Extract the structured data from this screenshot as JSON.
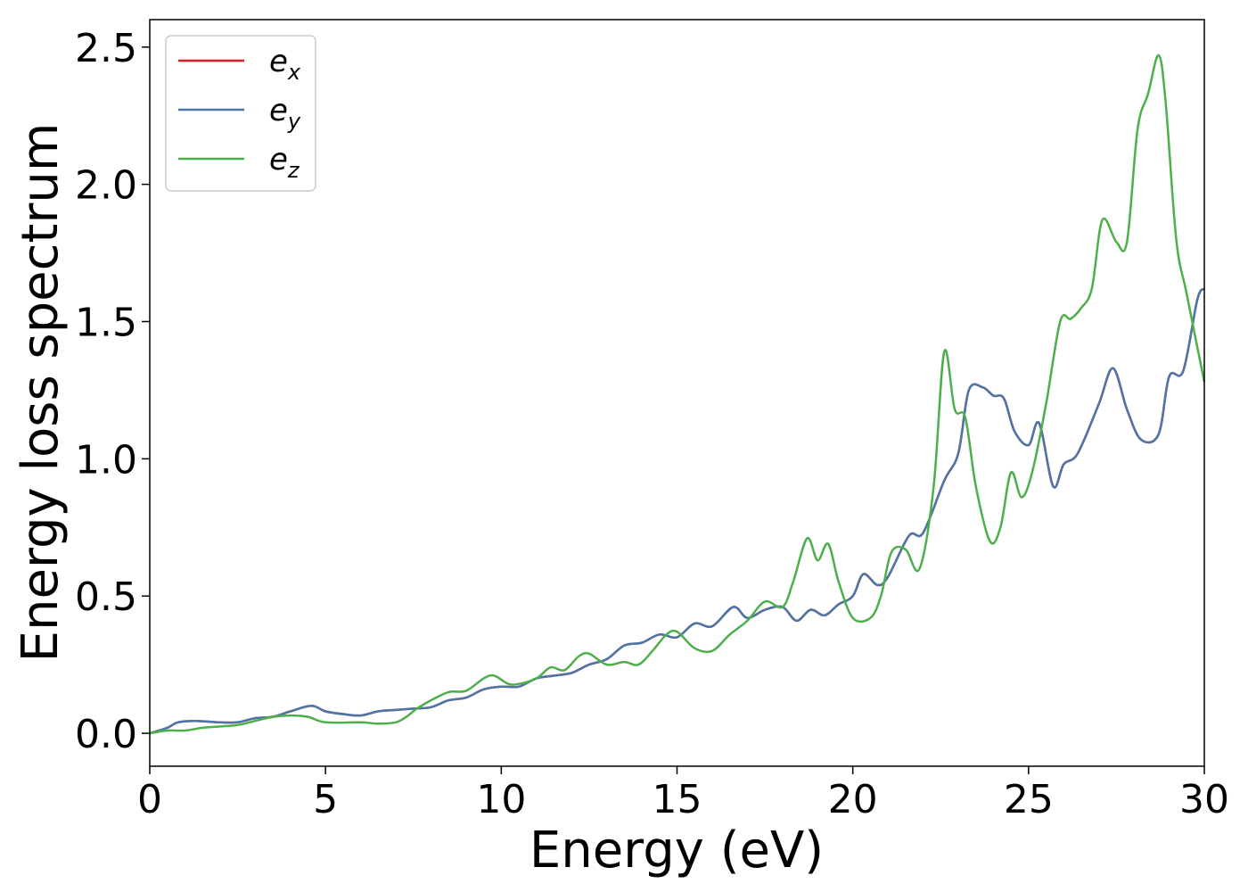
{
  "chart_data": {
    "type": "line",
    "title": "",
    "xlabel": "Energy (eV)",
    "ylabel": "Energy loss spectrum",
    "xlim": [
      0,
      30
    ],
    "ylim": [
      -0.12,
      2.6
    ],
    "xticks": [
      0,
      5,
      10,
      15,
      20,
      25,
      30
    ],
    "xtick_labels": [
      "0",
      "5",
      "10",
      "15",
      "20",
      "25",
      "30"
    ],
    "yticks": [
      0.0,
      0.5,
      1.0,
      1.5,
      2.0,
      2.5
    ],
    "ytick_labels": [
      "0.0",
      "0.5",
      "1.0",
      "1.5",
      "2.0",
      "2.5"
    ],
    "grid": false,
    "legend_position": "top-left",
    "series": [
      {
        "name": "e_x",
        "label_base": "e",
        "label_sub": "x",
        "color": "#e41a1c",
        "x": [
          0,
          0.5,
          0.8,
          1.3,
          2.0,
          2.5,
          3.0,
          3.5,
          4.0,
          4.6,
          5.0,
          5.5,
          6.0,
          6.5,
          7.0,
          7.5,
          8.0,
          8.5,
          9.0,
          9.5,
          10.0,
          10.5,
          11.0,
          11.5,
          12.0,
          12.5,
          13.0,
          13.5,
          14.0,
          14.5,
          15.0,
          15.5,
          16.0,
          16.6,
          17.0,
          17.5,
          18.0,
          18.4,
          18.8,
          19.2,
          19.6,
          20.0,
          20.3,
          20.7,
          21.0,
          21.6,
          22.0,
          22.6,
          23.0,
          23.3,
          23.7,
          24.0,
          24.3,
          24.6,
          25.0,
          25.3,
          25.7,
          26.0,
          26.4,
          27.0,
          27.4,
          27.8,
          28.2,
          28.7,
          29.0,
          29.4,
          29.8,
          30.0
        ],
        "values": [
          0.0,
          0.02,
          0.04,
          0.045,
          0.04,
          0.04,
          0.055,
          0.06,
          0.08,
          0.1,
          0.08,
          0.07,
          0.065,
          0.08,
          0.085,
          0.09,
          0.095,
          0.12,
          0.13,
          0.16,
          0.17,
          0.17,
          0.2,
          0.21,
          0.22,
          0.25,
          0.27,
          0.32,
          0.33,
          0.36,
          0.35,
          0.4,
          0.39,
          0.46,
          0.42,
          0.45,
          0.46,
          0.41,
          0.45,
          0.43,
          0.47,
          0.5,
          0.58,
          0.54,
          0.57,
          0.72,
          0.73,
          0.92,
          1.02,
          1.25,
          1.26,
          1.23,
          1.22,
          1.1,
          1.05,
          1.13,
          0.9,
          0.98,
          1.02,
          1.2,
          1.33,
          1.18,
          1.07,
          1.09,
          1.3,
          1.32,
          1.58,
          1.62
        ]
      },
      {
        "name": "e_y",
        "label_base": "e",
        "label_sub": "y",
        "color": "#4a77a8",
        "x": [
          0,
          0.5,
          0.8,
          1.3,
          2.0,
          2.5,
          3.0,
          3.5,
          4.0,
          4.6,
          5.0,
          5.5,
          6.0,
          6.5,
          7.0,
          7.5,
          8.0,
          8.5,
          9.0,
          9.5,
          10.0,
          10.5,
          11.0,
          11.5,
          12.0,
          12.5,
          13.0,
          13.5,
          14.0,
          14.5,
          15.0,
          15.5,
          16.0,
          16.6,
          17.0,
          17.5,
          18.0,
          18.4,
          18.8,
          19.2,
          19.6,
          20.0,
          20.3,
          20.7,
          21.0,
          21.6,
          22.0,
          22.6,
          23.0,
          23.3,
          23.7,
          24.0,
          24.3,
          24.6,
          25.0,
          25.3,
          25.7,
          26.0,
          26.4,
          27.0,
          27.4,
          27.8,
          28.2,
          28.7,
          29.0,
          29.4,
          29.8,
          30.0
        ],
        "values": [
          0.0,
          0.02,
          0.04,
          0.045,
          0.04,
          0.04,
          0.055,
          0.06,
          0.08,
          0.1,
          0.08,
          0.07,
          0.065,
          0.08,
          0.085,
          0.09,
          0.095,
          0.12,
          0.13,
          0.16,
          0.17,
          0.17,
          0.2,
          0.21,
          0.22,
          0.25,
          0.27,
          0.32,
          0.33,
          0.36,
          0.35,
          0.4,
          0.39,
          0.46,
          0.42,
          0.45,
          0.46,
          0.41,
          0.45,
          0.43,
          0.47,
          0.5,
          0.58,
          0.54,
          0.57,
          0.72,
          0.73,
          0.92,
          1.02,
          1.25,
          1.26,
          1.23,
          1.22,
          1.1,
          1.05,
          1.13,
          0.9,
          0.98,
          1.02,
          1.2,
          1.33,
          1.18,
          1.07,
          1.09,
          1.3,
          1.32,
          1.58,
          1.62
        ]
      },
      {
        "name": "e_z",
        "label_base": "e",
        "label_sub": "z",
        "color": "#4daf4a",
        "x": [
          0,
          0.5,
          1.0,
          1.5,
          2.0,
          2.5,
          3.0,
          3.5,
          4.0,
          4.5,
          5.0,
          6.0,
          6.5,
          7.0,
          7.3,
          7.6,
          8.0,
          8.5,
          9.0,
          9.5,
          9.8,
          10.2,
          10.5,
          11.0,
          11.4,
          11.8,
          12.2,
          12.5,
          13.0,
          13.5,
          13.9,
          14.3,
          14.7,
          15.0,
          15.5,
          16.0,
          16.5,
          17.0,
          17.5,
          18.0,
          18.3,
          18.7,
          19.0,
          19.3,
          19.6,
          20.0,
          20.5,
          20.8,
          21.1,
          21.5,
          21.9,
          22.3,
          22.6,
          22.9,
          23.2,
          23.5,
          23.9,
          24.2,
          24.5,
          24.8,
          25.1,
          25.5,
          25.9,
          26.2,
          26.5,
          26.8,
          27.1,
          27.5,
          27.8,
          28.1,
          28.4,
          28.7,
          28.9,
          29.2,
          29.5,
          30.0
        ],
        "values": [
          0.0,
          0.01,
          0.01,
          0.02,
          0.025,
          0.03,
          0.045,
          0.06,
          0.065,
          0.06,
          0.04,
          0.04,
          0.035,
          0.04,
          0.06,
          0.09,
          0.12,
          0.15,
          0.155,
          0.2,
          0.21,
          0.18,
          0.18,
          0.2,
          0.24,
          0.23,
          0.28,
          0.29,
          0.25,
          0.26,
          0.25,
          0.3,
          0.36,
          0.37,
          0.31,
          0.3,
          0.36,
          0.41,
          0.48,
          0.46,
          0.55,
          0.71,
          0.63,
          0.69,
          0.55,
          0.42,
          0.42,
          0.5,
          0.66,
          0.67,
          0.6,
          0.9,
          1.39,
          1.18,
          1.15,
          0.9,
          0.7,
          0.75,
          0.95,
          0.86,
          0.95,
          1.2,
          1.5,
          1.51,
          1.55,
          1.62,
          1.87,
          1.79,
          1.79,
          2.2,
          2.33,
          2.47,
          2.3,
          1.8,
          1.6,
          1.28
        ]
      }
    ]
  }
}
